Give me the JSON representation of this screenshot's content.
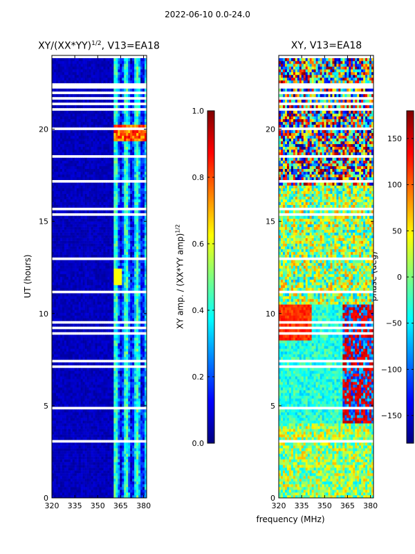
{
  "suptitle": "2022-06-10 0.0-24.0",
  "colors": {
    "jet": [
      "#00007f",
      "#0000ff",
      "#007fff",
      "#00ffff",
      "#7fff7f",
      "#ffff00",
      "#ff7f00",
      "#ff0000",
      "#7f0000"
    ]
  },
  "chart_data": [
    {
      "type": "heatmap",
      "title": "XY/(XX*YY)",
      "title_exponent": "1/2",
      "title_suffix": ", V13=EA18",
      "xlabel": "",
      "ylabel": "UT (hours)",
      "x_ticks": [
        320,
        335,
        350,
        365,
        380
      ],
      "y_ticks": [
        0,
        5,
        10,
        15,
        20
      ],
      "xlim": [
        320,
        382
      ],
      "ylim": [
        0,
        24
      ],
      "colorbar": {
        "label": "XY amp. / (XX*YY amp)",
        "label_exponent": "1/2",
        "ticks": [
          0.0,
          0.2,
          0.4,
          0.6,
          0.8,
          1.0
        ],
        "tick_labels": [
          "0.0",
          "0.2",
          "0.4",
          "0.6",
          "0.8",
          "1.0"
        ],
        "range": [
          0,
          1
        ]
      },
      "description_values": {
        "background_level": 0.03,
        "active_band_mhz": [
          360,
          382
        ],
        "active_level": 0.35,
        "peak_ut_hours": [
          19.3,
          20.2
        ],
        "peak_level": 0.9
      }
    },
    {
      "type": "heatmap",
      "title": "XY, V13=EA18",
      "xlabel": "frequency (MHz)",
      "ylabel": "",
      "x_ticks": [
        320,
        335,
        350,
        365,
        380
      ],
      "y_ticks": [
        0,
        5,
        10,
        15,
        20
      ],
      "xlim": [
        320,
        382
      ],
      "ylim": [
        0,
        24
      ],
      "colorbar": {
        "label": "phase (deg)",
        "ticks": [
          -150,
          -100,
          -50,
          0,
          50,
          100,
          150
        ],
        "tick_labels": [
          "−150",
          "−100",
          "−50",
          "0",
          "50",
          "100",
          "150"
        ],
        "range": [
          -180,
          180
        ]
      }
    }
  ]
}
